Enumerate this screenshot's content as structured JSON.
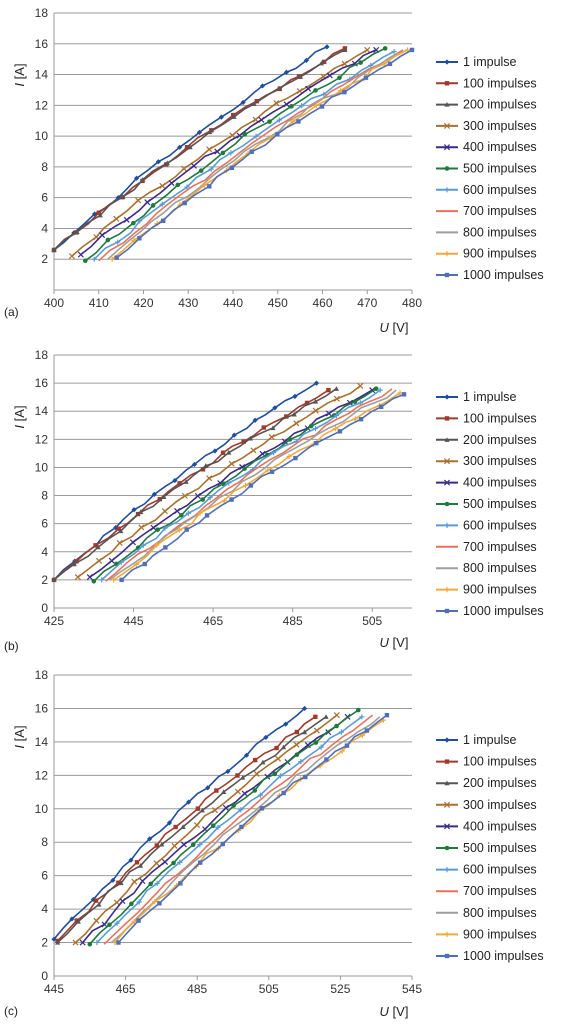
{
  "chart_data": [
    {
      "type": "line",
      "panel_label": "(a)",
      "xlabel_var": "U",
      "xlabel_unit": "[V]",
      "ylabel_var": "I",
      "ylabel_unit": "[A]",
      "xlim": [
        400,
        480
      ],
      "ylim": [
        0,
        18
      ],
      "x_ticks": [
        400,
        410,
        420,
        430,
        440,
        450,
        460,
        470,
        480
      ],
      "y_ticks": [
        2,
        4,
        6,
        8,
        10,
        12,
        14,
        16,
        18
      ],
      "grid": "horizontal",
      "legend": "right",
      "series": [
        {
          "name": "1 impulse",
          "color": "#1f4e9c",
          "marker": "diamond",
          "x_start": 400,
          "x_end": 461,
          "y_start": 2.6,
          "y_end": 15.8
        },
        {
          "name": "100 impulses",
          "color": "#a23a2a",
          "marker": "square",
          "x_start": 400,
          "x_end": 465,
          "y_start": 2.6,
          "y_end": 15.7
        },
        {
          "name": "200 impulses",
          "color": "#555555",
          "marker": "triangle",
          "x_start": 400,
          "x_end": 465,
          "y_start": 2.6,
          "y_end": 15.6
        },
        {
          "name": "300 impulses",
          "color": "#a9702e",
          "marker": "x",
          "x_start": 404,
          "x_end": 470,
          "y_start": 2.2,
          "y_end": 15.6
        },
        {
          "name": "400 impulses",
          "color": "#3a2a8a",
          "marker": "x",
          "x_start": 406,
          "x_end": 472,
          "y_start": 2.3,
          "y_end": 15.6
        },
        {
          "name": "500 impulses",
          "color": "#1e7a3a",
          "marker": "circle",
          "x_start": 407,
          "x_end": 474,
          "y_start": 1.9,
          "y_end": 15.7
        },
        {
          "name": "600 impulses",
          "color": "#5b9bd5",
          "marker": "plus",
          "x_start": 409,
          "x_end": 476,
          "y_start": 2.0,
          "y_end": 15.5
        },
        {
          "name": "700 impulses",
          "color": "#e8735a",
          "marker": "none",
          "x_start": 410,
          "x_end": 478,
          "y_start": 1.9,
          "y_end": 15.6
        },
        {
          "name": "800 impulses",
          "color": "#9e9e9e",
          "marker": "none",
          "x_start": 412,
          "x_end": 478,
          "y_start": 2.0,
          "y_end": 15.5
        },
        {
          "name": "900 impulses",
          "color": "#f2a93b",
          "marker": "plus",
          "x_start": 413,
          "x_end": 479,
          "y_start": 2.0,
          "y_end": 15.6
        },
        {
          "name": "1000 impulses",
          "color": "#4f6fb8",
          "marker": "square",
          "x_start": 414,
          "x_end": 480,
          "y_start": 2.1,
          "y_end": 15.6
        }
      ]
    },
    {
      "type": "line",
      "panel_label": "(b)",
      "xlabel_var": "U",
      "xlabel_unit": "[V]",
      "ylabel_var": "I",
      "ylabel_unit": "[A]",
      "xlim": [
        425,
        515
      ],
      "ylim": [
        0,
        18
      ],
      "x_ticks": [
        425,
        445,
        465,
        485,
        505
      ],
      "y_ticks": [
        0,
        2,
        4,
        6,
        8,
        10,
        12,
        14,
        16,
        18
      ],
      "grid": "horizontal",
      "legend": "right",
      "series": [
        {
          "name": "1 impulse",
          "color": "#1f4e9c",
          "marker": "diamond",
          "x_start": 425,
          "x_end": 491,
          "y_start": 2.0,
          "y_end": 16.0
        },
        {
          "name": "100 impulses",
          "color": "#a23a2a",
          "marker": "square",
          "x_start": 425,
          "x_end": 494,
          "y_start": 2.0,
          "y_end": 15.5
        },
        {
          "name": "200 impulses",
          "color": "#555555",
          "marker": "triangle",
          "x_start": 425,
          "x_end": 496,
          "y_start": 2.0,
          "y_end": 15.6
        },
        {
          "name": "300 impulses",
          "color": "#a9702e",
          "marker": "x",
          "x_start": 431,
          "x_end": 502,
          "y_start": 2.2,
          "y_end": 15.8
        },
        {
          "name": "400 impulses",
          "color": "#3a2a8a",
          "marker": "x",
          "x_start": 434,
          "x_end": 505,
          "y_start": 2.2,
          "y_end": 15.5
        },
        {
          "name": "500 impulses",
          "color": "#1e7a3a",
          "marker": "circle",
          "x_start": 435,
          "x_end": 506,
          "y_start": 1.9,
          "y_end": 15.6
        },
        {
          "name": "600 impulses",
          "color": "#5b9bd5",
          "marker": "plus",
          "x_start": 437,
          "x_end": 507,
          "y_start": 2.0,
          "y_end": 15.5
        },
        {
          "name": "700 impulses",
          "color": "#e8735a",
          "marker": "none",
          "x_start": 438,
          "x_end": 510,
          "y_start": 1.9,
          "y_end": 15.6
        },
        {
          "name": "800 impulses",
          "color": "#9e9e9e",
          "marker": "none",
          "x_start": 439,
          "x_end": 511,
          "y_start": 2.0,
          "y_end": 15.5
        },
        {
          "name": "900 impulses",
          "color": "#f2a93b",
          "marker": "plus",
          "x_start": 440,
          "x_end": 512,
          "y_start": 2.0,
          "y_end": 15.3
        },
        {
          "name": "1000 impulses",
          "color": "#4f6fb8",
          "marker": "square",
          "x_start": 442,
          "x_end": 513,
          "y_start": 2.0,
          "y_end": 15.2
        }
      ]
    },
    {
      "type": "line",
      "panel_label": "(c)",
      "xlabel_var": "U",
      "xlabel_unit": "[V]",
      "ylabel_var": "I",
      "ylabel_unit": "[A]",
      "xlim": [
        445,
        545
      ],
      "ylim": [
        0,
        18
      ],
      "x_ticks": [
        445,
        465,
        485,
        505,
        525,
        545
      ],
      "y_ticks": [
        0,
        2,
        4,
        6,
        8,
        10,
        12,
        14,
        16,
        18
      ],
      "grid": "horizontal",
      "legend": "right",
      "series": [
        {
          "name": "1 impulse",
          "color": "#1f4e9c",
          "marker": "diamond",
          "x_start": 445,
          "x_end": 515,
          "y_start": 2.2,
          "y_end": 16.0
        },
        {
          "name": "100 impulses",
          "color": "#a23a2a",
          "marker": "square",
          "x_start": 446,
          "x_end": 518,
          "y_start": 2.1,
          "y_end": 15.5
        },
        {
          "name": "200 impulses",
          "color": "#555555",
          "marker": "triangle",
          "x_start": 446,
          "x_end": 521,
          "y_start": 2.0,
          "y_end": 15.5
        },
        {
          "name": "300 impulses",
          "color": "#a9702e",
          "marker": "x",
          "x_start": 451,
          "x_end": 524,
          "y_start": 2.0,
          "y_end": 15.6
        },
        {
          "name": "400 impulses",
          "color": "#3a2a8a",
          "marker": "x",
          "x_start": 453,
          "x_end": 527,
          "y_start": 2.0,
          "y_end": 15.5
        },
        {
          "name": "500 impulses",
          "color": "#1e7a3a",
          "marker": "circle",
          "x_start": 455,
          "x_end": 530,
          "y_start": 1.9,
          "y_end": 15.9
        },
        {
          "name": "600 impulses",
          "color": "#5b9bd5",
          "marker": "plus",
          "x_start": 457,
          "x_end": 531,
          "y_start": 2.0,
          "y_end": 15.5
        },
        {
          "name": "700 impulses",
          "color": "#e8735a",
          "marker": "none",
          "x_start": 459,
          "x_end": 534,
          "y_start": 1.9,
          "y_end": 15.6
        },
        {
          "name": "800 impulses",
          "color": "#9e9e9e",
          "marker": "none",
          "x_start": 461,
          "x_end": 536,
          "y_start": 2.0,
          "y_end": 15.5
        },
        {
          "name": "900 impulses",
          "color": "#f2a93b",
          "marker": "plus",
          "x_start": 462,
          "x_end": 537,
          "y_start": 2.0,
          "y_end": 15.3
        },
        {
          "name": "1000 impulses",
          "color": "#4f6fb8",
          "marker": "square",
          "x_start": 463,
          "x_end": 538,
          "y_start": 2.0,
          "y_end": 15.6
        }
      ]
    }
  ]
}
